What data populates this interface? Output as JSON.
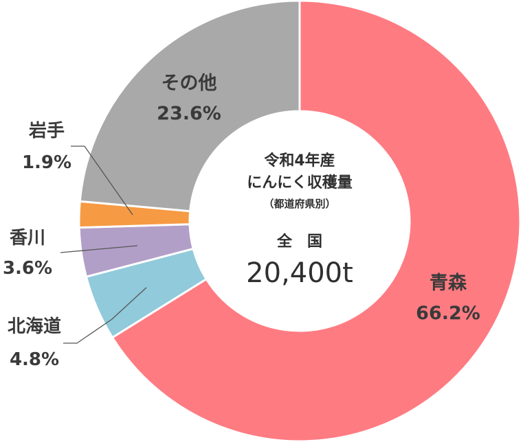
{
  "chart_data": {
    "type": "pie",
    "center": {
      "title_line1": "令和4年産",
      "title_line2": "にんにく収穫量",
      "title_line3": "（都道府県別）",
      "total_label": "全　国",
      "total_value": "20,400t"
    },
    "slices": [
      {
        "name": "青森",
        "value": 66.2,
        "percent_label": "66.2%",
        "color": "#ff7b82",
        "label_style": "inside"
      },
      {
        "name": "北海道",
        "value": 4.8,
        "percent_label": "4.8%",
        "color": "#90cadb",
        "label_style": "outside"
      },
      {
        "name": "香川",
        "value": 3.6,
        "percent_label": "3.6%",
        "color": "#b29fc8",
        "label_style": "outside"
      },
      {
        "name": "岩手",
        "value": 1.9,
        "percent_label": "1.9%",
        "color": "#f69a44",
        "label_style": "outside"
      },
      {
        "name": "その他",
        "value": 23.6,
        "percent_label": "23.6%",
        "color": "#a9a9a9",
        "label_style": "inside"
      }
    ]
  }
}
